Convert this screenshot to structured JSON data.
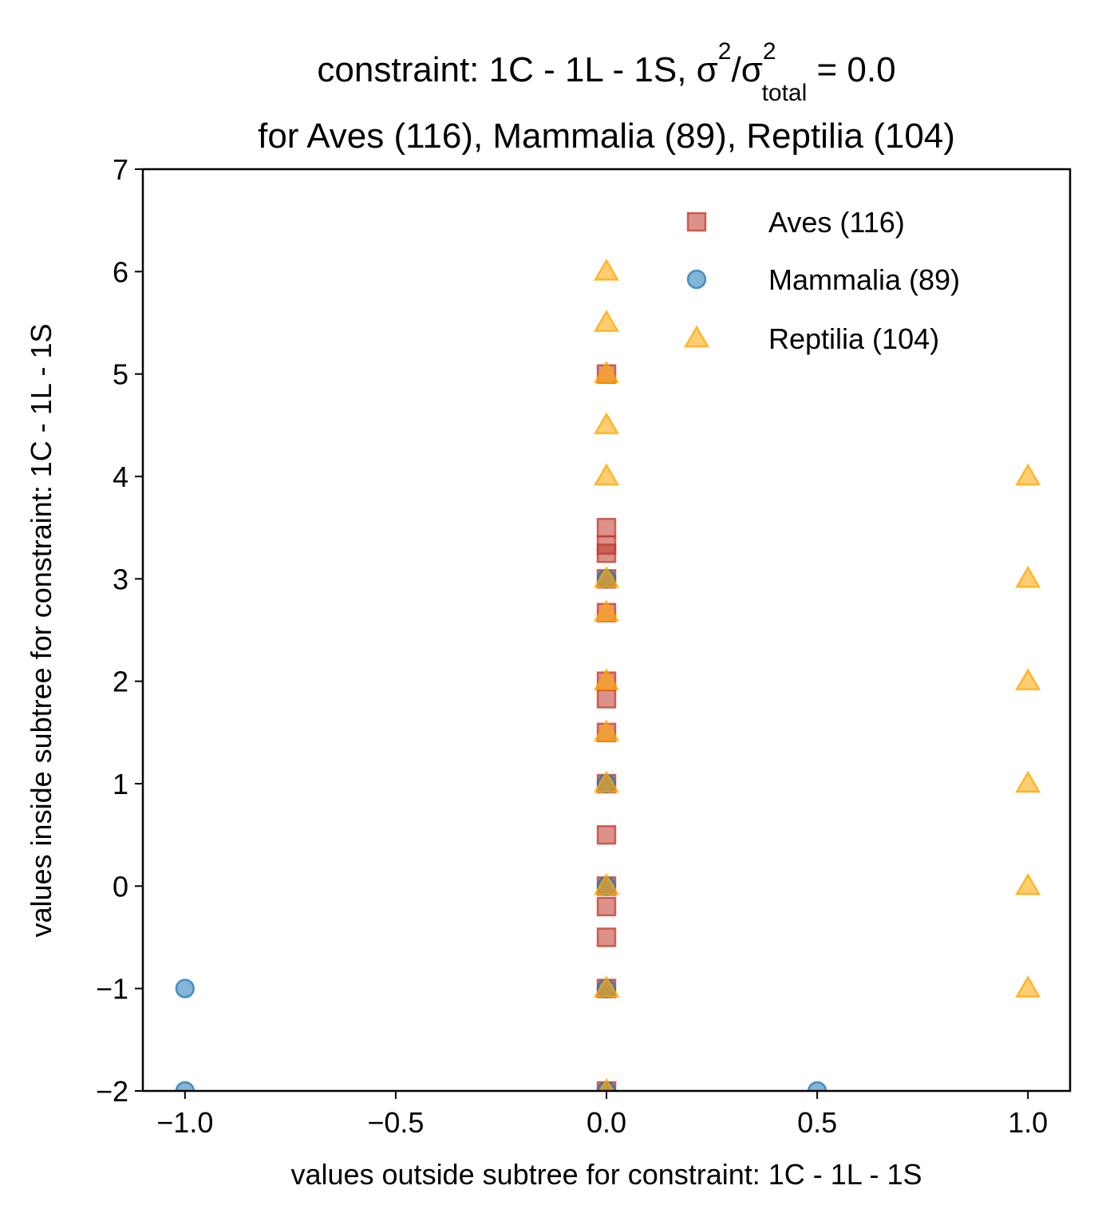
{
  "chart_data": {
    "type": "scatter",
    "title_main": "constraint: 1C - 1L - 1S, σ",
    "title_sup1": "2",
    "title_slash": "/σ",
    "title_sup2": "2",
    "title_sub": "total",
    "title_tail": " =  0.0",
    "subtitle": "for Aves (116), Mammalia (89), Reptilia (104)",
    "xlabel": "values outside subtree for constraint: 1C - 1L - 1S",
    "ylabel": "values inside subtree for constraint: 1C - 1L - 1S",
    "xlim": [
      -1.1,
      1.1
    ],
    "ylim": [
      -2,
      7
    ],
    "xticks": [
      -1.0,
      -0.5,
      0.0,
      0.5,
      1.0
    ],
    "xtick_labels": [
      "−1.0",
      "−0.5",
      "0.0",
      "0.5",
      "1.0"
    ],
    "yticks": [
      -2,
      -1,
      0,
      1,
      2,
      3,
      4,
      5,
      6,
      7
    ],
    "ytick_labels": [
      "−2",
      "−1",
      "0",
      "1",
      "2",
      "3",
      "4",
      "5",
      "6",
      "7"
    ],
    "grid": false,
    "legend_position": "top-right",
    "series": [
      {
        "name": "Aves (116)",
        "marker": "square",
        "color": "#c0392b",
        "points": [
          [
            0,
            5
          ],
          [
            0,
            3.5
          ],
          [
            0,
            3.33
          ],
          [
            0,
            3.25
          ],
          [
            0,
            3
          ],
          [
            0,
            2.67
          ],
          [
            0,
            2
          ],
          [
            0,
            1.83
          ],
          [
            0,
            1.5
          ],
          [
            0,
            1
          ],
          [
            0,
            0.5
          ],
          [
            0,
            0
          ],
          [
            0,
            -0.2
          ],
          [
            0,
            -0.5
          ],
          [
            0,
            -1
          ],
          [
            0,
            -2
          ]
        ]
      },
      {
        "name": "Mammalia (89)",
        "marker": "circle",
        "color": "#1f77b4",
        "points": [
          [
            -1,
            -1
          ],
          [
            -1,
            -2
          ],
          [
            0,
            3
          ],
          [
            0,
            1
          ],
          [
            0,
            0
          ],
          [
            0,
            -1
          ],
          [
            0,
            -2
          ],
          [
            0.5,
            -2
          ]
        ]
      },
      {
        "name": "Reptilia (104)",
        "marker": "triangle",
        "color": "#ffa500",
        "points": [
          [
            0,
            6
          ],
          [
            0,
            5.5
          ],
          [
            0,
            5
          ],
          [
            0,
            4.5
          ],
          [
            0,
            4
          ],
          [
            0,
            3
          ],
          [
            0,
            2.67
          ],
          [
            0,
            2
          ],
          [
            0,
            1.5
          ],
          [
            0,
            1
          ],
          [
            0,
            0
          ],
          [
            0,
            -1
          ],
          [
            0,
            -2
          ],
          [
            1,
            4
          ],
          [
            1,
            3
          ],
          [
            1,
            2
          ],
          [
            1,
            1
          ],
          [
            1,
            0
          ],
          [
            1,
            -1
          ]
        ]
      }
    ]
  }
}
